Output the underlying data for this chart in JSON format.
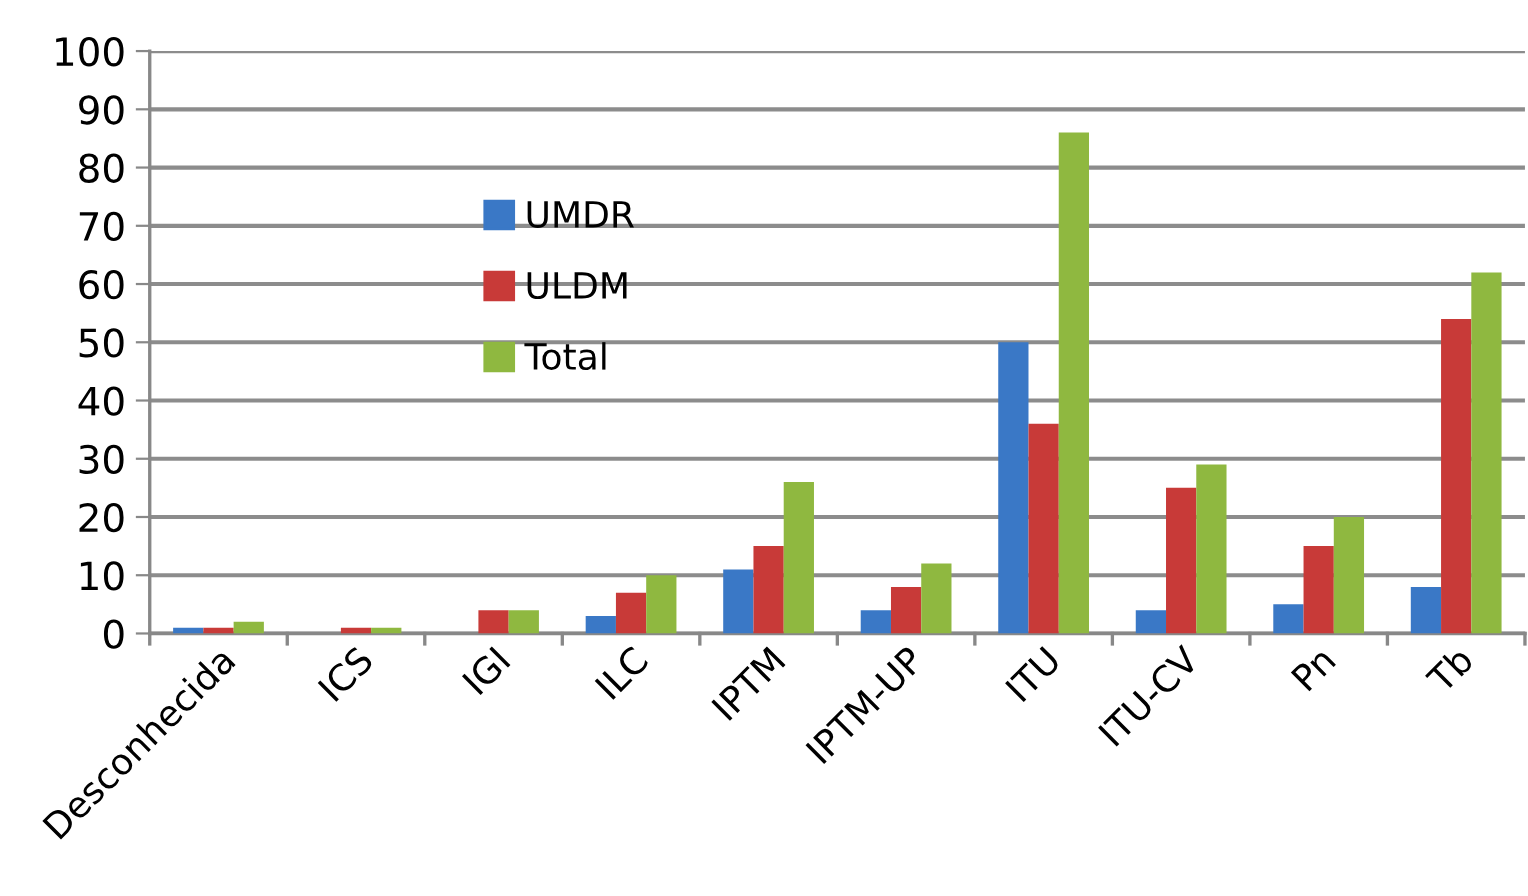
{
  "chart_data": {
    "type": "bar",
    "categories": [
      "Desconhecida",
      "ICS",
      "IGI",
      "ILC",
      "IPTM",
      "IPTM-UP",
      "ITU",
      "ITU-CV",
      "Pn",
      "Tb"
    ],
    "series": [
      {
        "name": "UMDR",
        "color": "#3a78c6",
        "values": [
          1,
          0,
          0,
          3,
          11,
          4,
          50,
          4,
          5,
          8
        ]
      },
      {
        "name": "ULDM",
        "color": "#c83a38",
        "values": [
          1,
          1,
          4,
          7,
          15,
          8,
          36,
          25,
          15,
          54
        ]
      },
      {
        "name": "Total",
        "color": "#8fb840",
        "values": [
          2,
          1,
          4,
          10,
          26,
          12,
          86,
          29,
          20,
          62
        ]
      }
    ],
    "ylim": [
      0,
      100
    ],
    "yticks": [
      0,
      10,
      20,
      30,
      40,
      50,
      60,
      70,
      80,
      90,
      100
    ],
    "grid": "y",
    "legend": "top left"
  }
}
